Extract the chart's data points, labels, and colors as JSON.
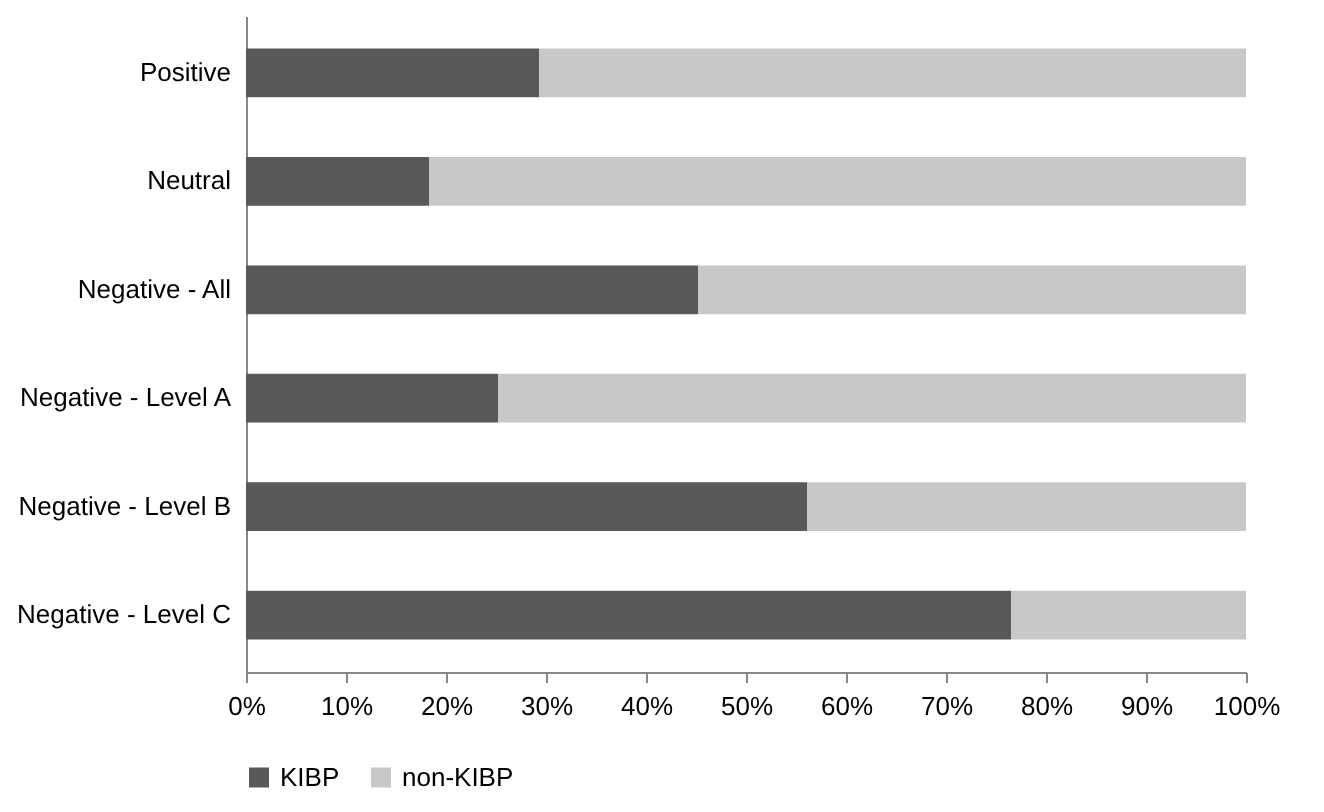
{
  "chart_data": {
    "type": "bar",
    "orientation": "horizontal",
    "stacked": true,
    "categories": [
      "Positive",
      "Neutral",
      "Negative - All",
      "Negative - Level A",
      "Negative - Level B",
      "Negative - Level C"
    ],
    "series": [
      {
        "name": "KIBP",
        "color": "#595959",
        "values": [
          29.3,
          18.3,
          45.2,
          25.2,
          56.1,
          76.5
        ]
      },
      {
        "name": "non-KIBP",
        "color": "#c8c8c8",
        "values": [
          70.7,
          81.7,
          54.8,
          74.8,
          43.9,
          23.5
        ]
      }
    ],
    "xlim": [
      0,
      100
    ],
    "xticks": [
      {
        "value": 0,
        "label": "0%"
      },
      {
        "value": 10,
        "label": "10%"
      },
      {
        "value": 20,
        "label": "20%"
      },
      {
        "value": 30,
        "label": "30%"
      },
      {
        "value": 40,
        "label": "40%"
      },
      {
        "value": 50,
        "label": "50%"
      },
      {
        "value": 60,
        "label": "60%"
      },
      {
        "value": 70,
        "label": "70%"
      },
      {
        "value": 80,
        "label": "80%"
      },
      {
        "value": 90,
        "label": "90%"
      },
      {
        "value": 100,
        "label": "100%"
      }
    ],
    "grid": false,
    "legend": "bottom"
  }
}
